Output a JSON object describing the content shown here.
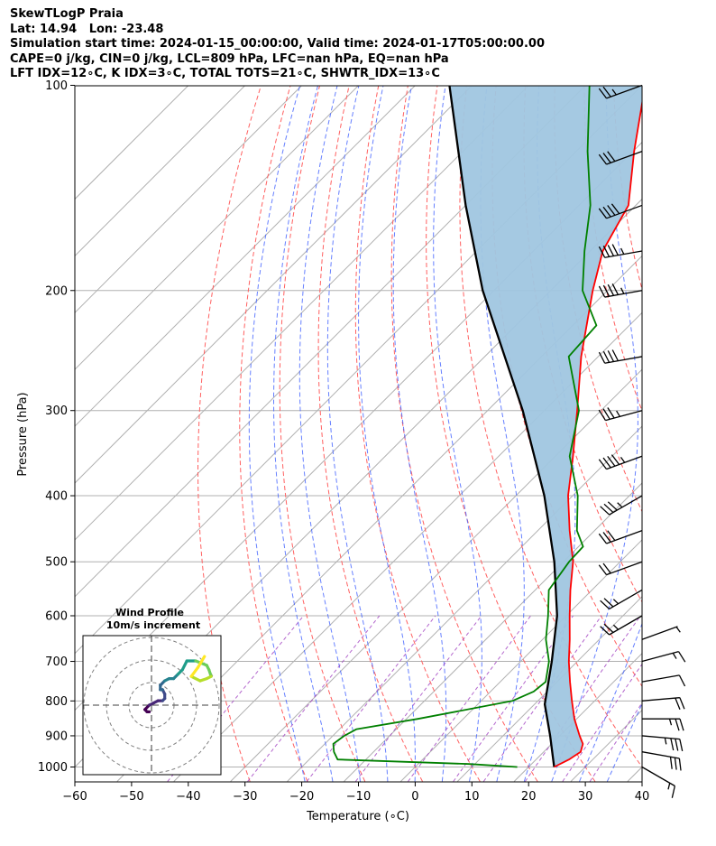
{
  "header": {
    "line1": "SkewTLogP Praia",
    "line2": "Lat: 14.94   Lon: -23.48",
    "line3": "Simulation start time: 2024-01-15_00:00:00, Valid time: 2024-01-17T05:00:00.00",
    "line4": "CAPE=0 j/kg, CIN=0 j/kg, LCL=809 hPa, LFC=nan hPa, EQ=nan hPa",
    "line5": "LFT IDX=12∘C, K IDX=3∘C, TOTAL TOTS=21∘C, SHWTR_IDX=13∘C"
  },
  "chart_data": [
    {
      "type": "line",
      "title": "",
      "xlabel": "Temperature (∘C)",
      "ylabel": "Pressure (hPa)",
      "xlim": [
        -60,
        40
      ],
      "ylim": [
        1050,
        100
      ],
      "y_scale": "log",
      "grid": true,
      "x_ticks": [
        -60,
        -50,
        -40,
        -30,
        -20,
        -10,
        0,
        10,
        20,
        30,
        40
      ],
      "x_tick_labels": [
        "−60",
        "−50",
        "−40",
        "−30",
        "−20",
        "−10",
        "0",
        "10",
        "20",
        "30",
        "40"
      ],
      "y_ticks": [
        1000,
        900,
        800,
        700,
        600,
        500,
        400,
        300,
        200,
        100
      ],
      "y_tick_labels": [
        "1000",
        "900",
        "800",
        "700",
        "600",
        "500",
        "400",
        "300",
        "200",
        "100"
      ],
      "series": [
        {
          "role": "temperature",
          "color": "#ff0000",
          "pressure": [
            1000,
            975,
            950,
            925,
            900,
            850,
            800,
            750,
            700,
            650,
            600,
            550,
            500,
            450,
            400,
            350,
            300,
            250,
            200,
            175,
            150,
            125,
            100
          ],
          "temperature": [
            24.5,
            25.8,
            26.5,
            25.5,
            23.5,
            19.6,
            16.0,
            12.3,
            8.5,
            4.8,
            0.6,
            -3.8,
            -8.3,
            -14.4,
            -20.8,
            -26.9,
            -34.2,
            -43.0,
            -52.6,
            -57.8,
            -61.3,
            -69.8,
            -79.5
          ]
        },
        {
          "role": "dewpoint",
          "color": "#008000",
          "pressure": [
            1000,
            990,
            975,
            950,
            925,
            900,
            880,
            850,
            800,
            775,
            750,
            700,
            650,
            600,
            550,
            500,
            475,
            450,
            400,
            350,
            300,
            250,
            225,
            200,
            175,
            150,
            125,
            100
          ],
          "dewpoint": [
            18.0,
            9.0,
            -15.0,
            -17.0,
            -18.5,
            -18.0,
            -17.0,
            -8.0,
            5.5,
            7.6,
            8.0,
            5.0,
            0.6,
            -3.2,
            -7.6,
            -9.0,
            -9.2,
            -13.1,
            -19.1,
            -27.5,
            -33.9,
            -45.2,
            -45.8,
            -54.4,
            -61.0,
            -68.0,
            -78.0,
            -89.3
          ]
        },
        {
          "role": "parcel",
          "color": "#000000",
          "pressure": [
            1000,
            900,
            809,
            700,
            600,
            500,
            400,
            300,
            200,
            150,
            100
          ],
          "temperature": [
            24.5,
            18.3,
            11.8,
            5.5,
            -1.6,
            -11.6,
            -25.0,
            -43.8,
            -72.0,
            -90.0,
            -114.0
          ]
        }
      ],
      "shading": {
        "color": "#a0c6e0",
        "between": [
          "temperature",
          "parcel"
        ]
      },
      "wind_barbs": {
        "color": "#000000",
        "pressure": [
          1000,
          950,
          900,
          850,
          800,
          750,
          700,
          650,
          600,
          550,
          500,
          450,
          400,
          350,
          300,
          250,
          200,
          175,
          150,
          125,
          100
        ],
        "speed_kt": [
          15,
          30,
          35,
          25,
          20,
          10,
          15,
          5,
          25,
          25,
          20,
          30,
          35,
          45,
          35,
          40,
          45,
          45,
          40,
          30,
          25
        ],
        "direction_deg": [
          120,
          100,
          95,
          90,
          85,
          80,
          75,
          70,
          240,
          240,
          250,
          250,
          240,
          250,
          255,
          260,
          260,
          260,
          250,
          250,
          250
        ]
      }
    },
    {
      "type": "line",
      "title": "Wind Profile",
      "subtitle": "10m/s increment",
      "rings": 3,
      "colormap": "viridis",
      "u": [
        -1,
        -2,
        -3,
        -1,
        1,
        3,
        5,
        6,
        6,
        5,
        4,
        4,
        6,
        8,
        10,
        12,
        14,
        16,
        20,
        25,
        26,
        27,
        25,
        22,
        18,
        21,
        24
      ],
      "v": [
        -3,
        -3,
        -2,
        0,
        1,
        2,
        2,
        3,
        5,
        7,
        7,
        9,
        11,
        12,
        12,
        14,
        16,
        20,
        20,
        18,
        16,
        13,
        12,
        11,
        13,
        17,
        22
      ]
    }
  ]
}
